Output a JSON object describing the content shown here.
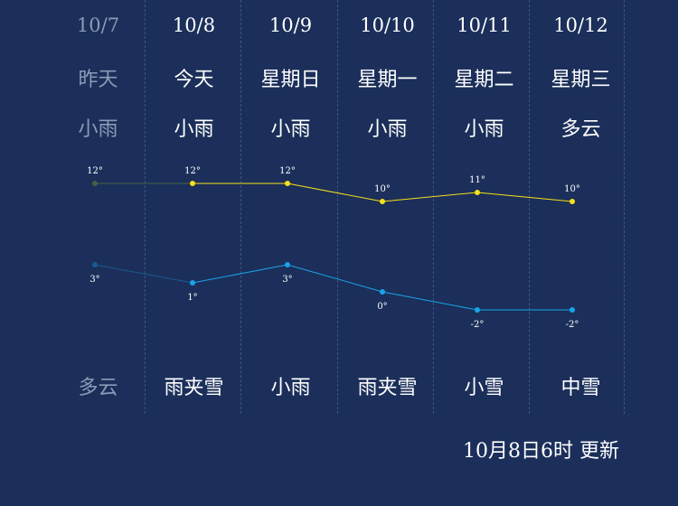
{
  "days": [
    {
      "date": "10/7",
      "weekday": "昨天",
      "weather_day": "小雨",
      "weather_night": "多云",
      "high": 12,
      "low": 3,
      "high_label": "12°",
      "low_label": "3°"
    },
    {
      "date": "10/8",
      "weekday": "今天",
      "weather_day": "小雨",
      "weather_night": "雨夹雪",
      "high": 12,
      "low": 1,
      "high_label": "12°",
      "low_label": "1°"
    },
    {
      "date": "10/9",
      "weekday": "星期日",
      "weather_day": "小雨",
      "weather_night": "小雨",
      "high": 12,
      "low": 3,
      "high_label": "12°",
      "low_label": "3°"
    },
    {
      "date": "10/10",
      "weekday": "星期一",
      "weather_day": "小雨",
      "weather_night": "雨夹雪",
      "high": 10,
      "low": 0,
      "high_label": "10°",
      "low_label": "0°"
    },
    {
      "date": "10/11",
      "weekday": "星期二",
      "weather_day": "小雨",
      "weather_night": "小雪",
      "high": 11,
      "low": -2,
      "high_label": "11°",
      "low_label": "-2°"
    },
    {
      "date": "10/12",
      "weekday": "星期三",
      "weather_day": "多云",
      "weather_night": "中雪",
      "high": 10,
      "low": -2,
      "high_label": "10°",
      "low_label": "-2°"
    }
  ],
  "update_text": "10月8日6时 更新",
  "colors": {
    "background": "#1b2f5a",
    "high_line": "#f5e01a",
    "low_line": "#1aa3e8",
    "past_text": "#8a9bb6",
    "past_high": "#4a6045",
    "past_low": "#1b5a90"
  },
  "chart_data": {
    "type": "line",
    "categories": [
      "10/7",
      "10/8",
      "10/9",
      "10/10",
      "10/11",
      "10/12"
    ],
    "series": [
      {
        "values": [
          12,
          12,
          12,
          10,
          11,
          10
        ]
      },
      {
        "values": [
          3,
          1,
          3,
          0,
          -2,
          -2
        ]
      }
    ]
  }
}
